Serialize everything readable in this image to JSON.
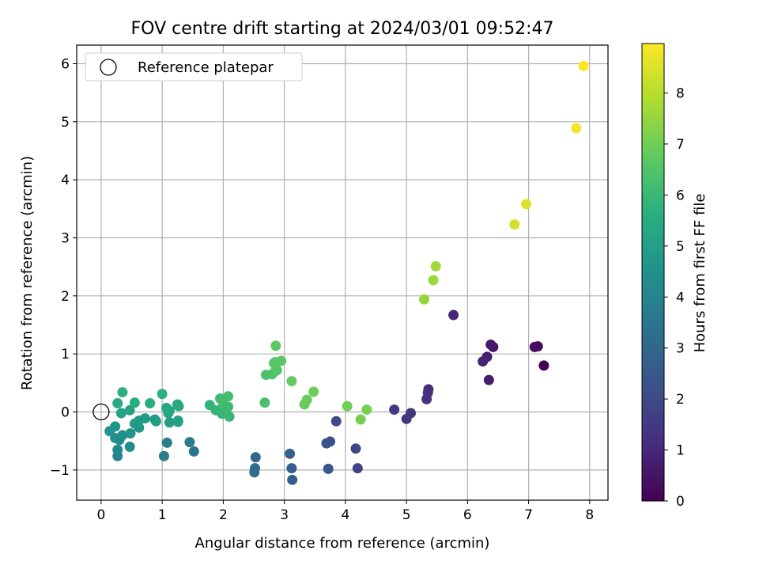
{
  "chart_data": {
    "type": "scatter",
    "title": "FOV centre drift starting at 2024/03/01 09:52:47",
    "xlabel": "Angular distance from reference (arcmin)",
    "ylabel": "Rotation from reference (arcmin)",
    "xlim": [
      -0.4,
      8.3
    ],
    "ylim": [
      -1.52,
      6.32
    ],
    "xticks": [
      0,
      1,
      2,
      3,
      4,
      5,
      6,
      7,
      8
    ],
    "yticks": [
      -1,
      0,
      1,
      2,
      3,
      4,
      5,
      6
    ],
    "grid": true,
    "legend": {
      "position": "top-left",
      "entries": [
        "Reference platepar"
      ]
    },
    "reference_point": {
      "x": 0,
      "y": 0
    },
    "colorbar": {
      "label": "Hours from first FF file",
      "min": 0,
      "max": 8.97,
      "ticks": [
        0,
        1,
        2,
        3,
        4,
        5,
        6,
        7,
        8
      ],
      "colormap": "viridis"
    },
    "points": [
      {
        "x": 7.25,
        "y": 0.8,
        "h": 0.05
      },
      {
        "x": 7.15,
        "y": 1.13,
        "h": 0.2
      },
      {
        "x": 7.1,
        "y": 1.12,
        "h": 0.35
      },
      {
        "x": 6.42,
        "y": 1.12,
        "h": 0.5
      },
      {
        "x": 6.38,
        "y": 1.16,
        "h": 0.6
      },
      {
        "x": 6.35,
        "y": 0.55,
        "h": 0.7
      },
      {
        "x": 6.32,
        "y": 0.95,
        "h": 0.8
      },
      {
        "x": 6.25,
        "y": 0.87,
        "h": 0.9
      },
      {
        "x": 5.77,
        "y": 1.67,
        "h": 1.0
      },
      {
        "x": 5.36,
        "y": 0.39,
        "h": 1.1
      },
      {
        "x": 5.35,
        "y": 0.33,
        "h": 1.2
      },
      {
        "x": 5.33,
        "y": 0.22,
        "h": 1.3
      },
      {
        "x": 5.07,
        "y": -0.02,
        "h": 1.4
      },
      {
        "x": 5.0,
        "y": -0.12,
        "h": 1.5
      },
      {
        "x": 4.8,
        "y": 0.04,
        "h": 1.6
      },
      {
        "x": 4.2,
        "y": -0.97,
        "h": 1.8
      },
      {
        "x": 4.17,
        "y": -0.63,
        "h": 1.9
      },
      {
        "x": 3.85,
        "y": -0.16,
        "h": 2.0
      },
      {
        "x": 3.75,
        "y": -0.51,
        "h": 2.2
      },
      {
        "x": 3.69,
        "y": -0.54,
        "h": 2.3
      },
      {
        "x": 3.72,
        "y": -0.98,
        "h": 2.4
      },
      {
        "x": 3.13,
        "y": -1.17,
        "h": 2.6
      },
      {
        "x": 3.12,
        "y": -0.97,
        "h": 2.7
      },
      {
        "x": 3.09,
        "y": -0.72,
        "h": 2.8
      },
      {
        "x": 2.53,
        "y": -0.78,
        "h": 3.0
      },
      {
        "x": 2.52,
        "y": -0.97,
        "h": 3.1
      },
      {
        "x": 2.51,
        "y": -1.04,
        "h": 3.2
      },
      {
        "x": 1.52,
        "y": -0.68,
        "h": 3.5
      },
      {
        "x": 1.45,
        "y": -0.52,
        "h": 3.7
      },
      {
        "x": 1.08,
        "y": -0.53,
        "h": 3.8
      },
      {
        "x": 1.03,
        "y": -0.76,
        "h": 3.9
      },
      {
        "x": 0.27,
        "y": -0.76,
        "h": 4.1
      },
      {
        "x": 0.27,
        "y": -0.65,
        "h": 4.2
      },
      {
        "x": 0.47,
        "y": -0.6,
        "h": 4.3
      },
      {
        "x": 0.3,
        "y": -0.48,
        "h": 4.35
      },
      {
        "x": 0.23,
        "y": -0.45,
        "h": 4.4
      },
      {
        "x": 0.35,
        "y": -0.4,
        "h": 4.5
      },
      {
        "x": 0.48,
        "y": -0.37,
        "h": 4.55
      },
      {
        "x": 0.14,
        "y": -0.33,
        "h": 4.6
      },
      {
        "x": 0.23,
        "y": -0.25,
        "h": 4.65
      },
      {
        "x": 0.62,
        "y": -0.27,
        "h": 4.7
      },
      {
        "x": 0.55,
        "y": -0.2,
        "h": 4.75
      },
      {
        "x": 0.62,
        "y": -0.15,
        "h": 4.8
      },
      {
        "x": 0.72,
        "y": -0.11,
        "h": 4.85
      },
      {
        "x": 0.88,
        "y": -0.13,
        "h": 4.9
      },
      {
        "x": 0.9,
        "y": -0.16,
        "h": 4.95
      },
      {
        "x": 1.12,
        "y": -0.18,
        "h": 5.0
      },
      {
        "x": 1.26,
        "y": -0.17,
        "h": 5.05
      },
      {
        "x": 1.26,
        "y": -0.15,
        "h": 5.1
      },
      {
        "x": 0.33,
        "y": -0.02,
        "h": 5.15
      },
      {
        "x": 0.47,
        "y": 0.03,
        "h": 5.2
      },
      {
        "x": 1.1,
        "y": -0.02,
        "h": 5.25
      },
      {
        "x": 1.12,
        "y": 0.02,
        "h": 5.3
      },
      {
        "x": 1.07,
        "y": 0.07,
        "h": 5.35
      },
      {
        "x": 1.27,
        "y": 0.1,
        "h": 5.4
      },
      {
        "x": 1.25,
        "y": 0.13,
        "h": 5.45
      },
      {
        "x": 0.27,
        "y": 0.15,
        "h": 5.5
      },
      {
        "x": 0.55,
        "y": 0.16,
        "h": 5.55
      },
      {
        "x": 0.8,
        "y": 0.15,
        "h": 5.6
      },
      {
        "x": 0.35,
        "y": 0.34,
        "h": 5.65
      },
      {
        "x": 1.0,
        "y": 0.31,
        "h": 5.7
      },
      {
        "x": 1.78,
        "y": 0.12,
        "h": 5.8
      },
      {
        "x": 1.88,
        "y": 0.03,
        "h": 5.85
      },
      {
        "x": 1.98,
        "y": -0.03,
        "h": 5.9
      },
      {
        "x": 2.1,
        "y": -0.08,
        "h": 5.95
      },
      {
        "x": 2.05,
        "y": 0.04,
        "h": 6.0
      },
      {
        "x": 2.08,
        "y": 0.09,
        "h": 6.05
      },
      {
        "x": 2.0,
        "y": 0.12,
        "h": 6.1
      },
      {
        "x": 1.95,
        "y": 0.23,
        "h": 6.15
      },
      {
        "x": 2.08,
        "y": 0.27,
        "h": 6.2
      },
      {
        "x": 2.68,
        "y": 0.16,
        "h": 6.3
      },
      {
        "x": 2.7,
        "y": 0.64,
        "h": 6.35
      },
      {
        "x": 2.8,
        "y": 0.65,
        "h": 6.4
      },
      {
        "x": 2.85,
        "y": 0.7,
        "h": 6.45
      },
      {
        "x": 2.88,
        "y": 0.72,
        "h": 6.5
      },
      {
        "x": 2.83,
        "y": 0.84,
        "h": 6.55
      },
      {
        "x": 2.85,
        "y": 0.86,
        "h": 6.6
      },
      {
        "x": 2.95,
        "y": 0.88,
        "h": 6.65
      },
      {
        "x": 2.86,
        "y": 1.14,
        "h": 6.7
      },
      {
        "x": 3.12,
        "y": 0.53,
        "h": 6.8
      },
      {
        "x": 3.33,
        "y": 0.13,
        "h": 6.85
      },
      {
        "x": 3.37,
        "y": 0.21,
        "h": 6.9
      },
      {
        "x": 3.48,
        "y": 0.35,
        "h": 6.95
      },
      {
        "x": 4.03,
        "y": 0.1,
        "h": 7.0
      },
      {
        "x": 4.25,
        "y": -0.13,
        "h": 7.05
      },
      {
        "x": 4.35,
        "y": 0.04,
        "h": 7.1
      },
      {
        "x": 5.29,
        "y": 1.94,
        "h": 7.5
      },
      {
        "x": 5.44,
        "y": 2.27,
        "h": 7.6
      },
      {
        "x": 5.48,
        "y": 2.51,
        "h": 7.7
      },
      {
        "x": 6.77,
        "y": 3.23,
        "h": 8.4
      },
      {
        "x": 6.96,
        "y": 3.58,
        "h": 8.5
      },
      {
        "x": 7.78,
        "y": 4.89,
        "h": 8.8
      },
      {
        "x": 7.9,
        "y": 5.96,
        "h": 8.97
      }
    ]
  }
}
